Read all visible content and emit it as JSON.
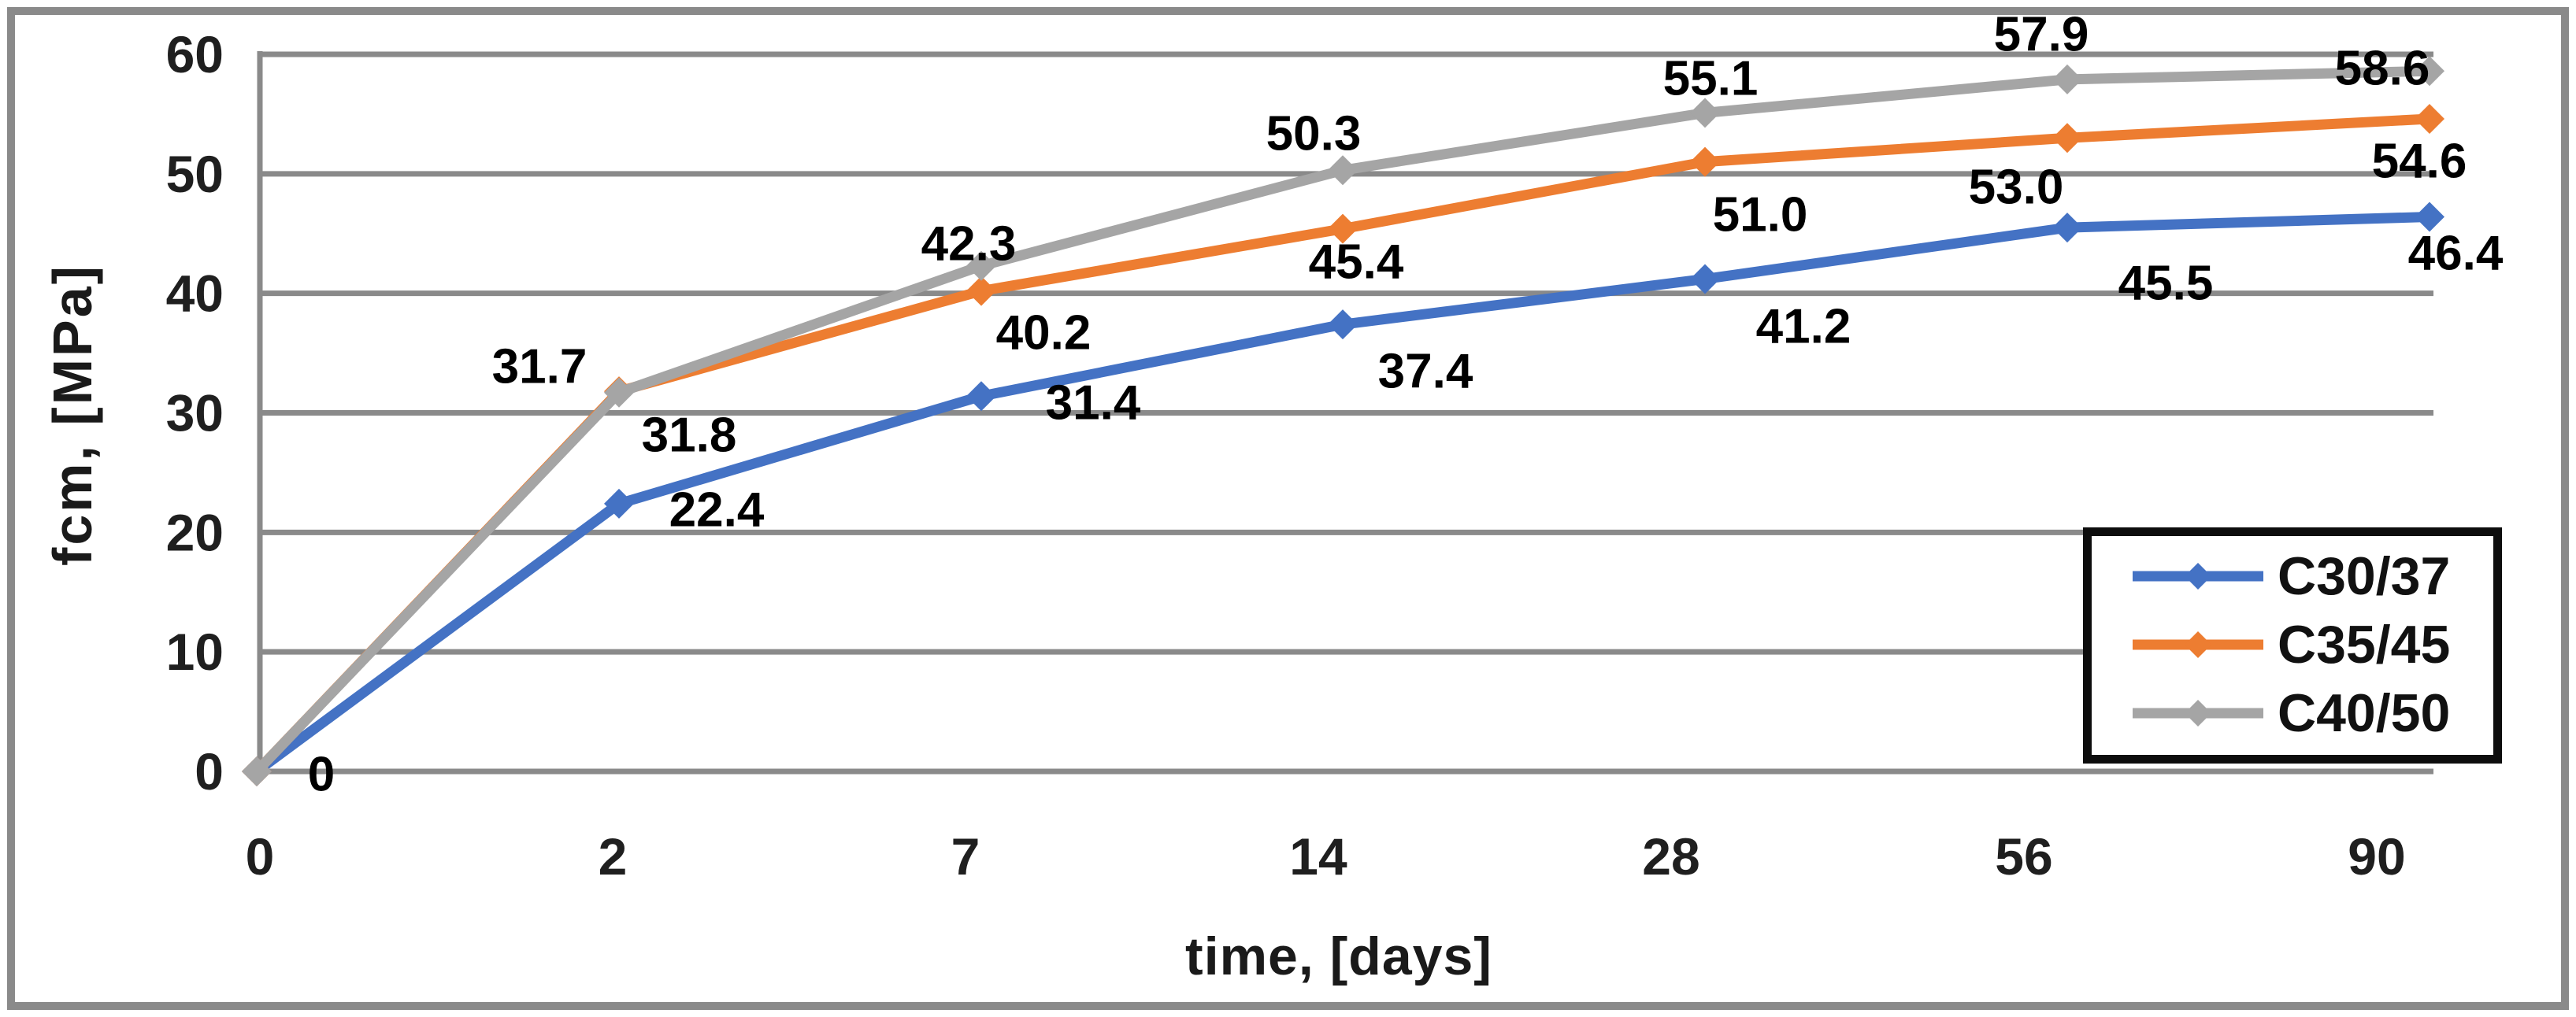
{
  "frame": {
    "color": "#8a8a8a"
  },
  "chart_data": {
    "type": "line",
    "title": "",
    "xlabel": "time, [days]",
    "ylabel": "fcm, [MPa]",
    "categories": [
      0,
      2,
      7,
      14,
      28,
      56,
      90
    ],
    "x_tick_labels": [
      "0",
      "2",
      "7",
      "14",
      "28",
      "56",
      "90"
    ],
    "y_tick_labels": [
      "0",
      "10",
      "20",
      "30",
      "40",
      "50",
      "60"
    ],
    "ylim": [
      0,
      60
    ],
    "grid": "horizontal",
    "legend_position": "inside-right",
    "axis_color": "#8a8a8a",
    "tick_color": "#1f1f1f",
    "data_label_color": "#000000",
    "marker": "diamond",
    "series": [
      {
        "name": "C30/37",
        "color": "#4472C4",
        "values": [
          0,
          22.4,
          31.4,
          37.4,
          41.2,
          45.5,
          46.4
        ],
        "data_labels": [
          "0",
          "22.4",
          "31.4",
          "37.4",
          "41.2",
          "45.5",
          "46.4"
        ]
      },
      {
        "name": "C35/45",
        "color": "#ED7D31",
        "values": [
          0,
          31.8,
          40.2,
          45.4,
          51.0,
          53.0,
          54.6
        ],
        "data_labels": [
          null,
          "31.8",
          "40.2",
          "45.4",
          "51.0",
          "53.0",
          "54.6"
        ]
      },
      {
        "name": "C40/50",
        "color": "#A5A5A5",
        "values": [
          0,
          31.7,
          42.3,
          50.3,
          55.1,
          57.9,
          58.6
        ],
        "data_labels": [
          null,
          "31.7",
          "42.3",
          "50.3",
          "55.1",
          "57.9",
          "58.6"
        ]
      }
    ]
  }
}
